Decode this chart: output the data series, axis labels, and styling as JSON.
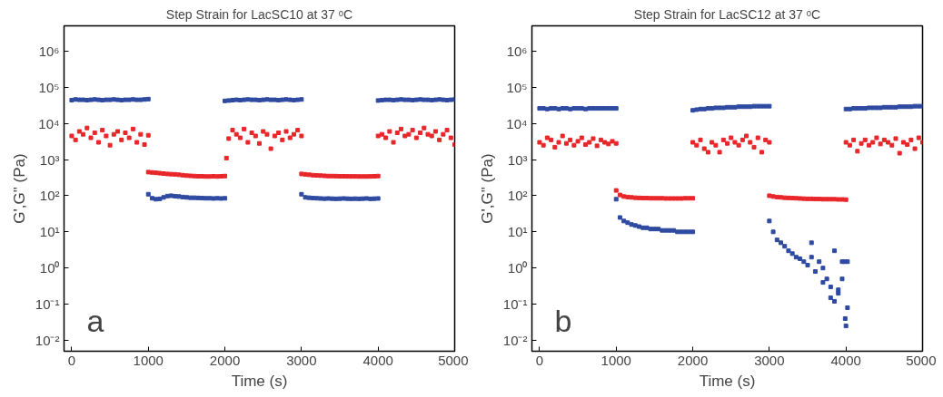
{
  "chart_data": [
    {
      "type": "scatter",
      "title": "Step Strain for LacSC10 at 37 ᵒC",
      "xlabel": "Time (s)",
      "ylabel": "G',G\" (Pa)",
      "log": true,
      "marker": "square",
      "grid": false,
      "xlim": [
        -100,
        5000
      ],
      "xticks": [
        0,
        1000,
        2000,
        3000,
        4000,
        5000
      ],
      "ylim": [
        0.005,
        5000000
      ],
      "yticks": [
        {
          "value": 0.01,
          "label": "10⁻²"
        },
        {
          "value": 0.1,
          "label": "10⁻¹"
        },
        {
          "value": 1,
          "label": "10⁰"
        },
        {
          "value": 10,
          "label": "10¹"
        },
        {
          "value": 100,
          "label": "10²"
        },
        {
          "value": 1000,
          "label": "10³"
        },
        {
          "value": 10000,
          "label": "10⁴"
        },
        {
          "value": 100000,
          "label": "10⁵"
        },
        {
          "value": 1000000,
          "label": "10⁶"
        }
      ],
      "annotations": [
        "a"
      ],
      "series": [
        {
          "color": "#2e4aa0",
          "x": [
            0,
            50,
            100,
            150,
            200,
            250,
            300,
            350,
            400,
            450,
            500,
            550,
            600,
            650,
            700,
            750,
            800,
            850,
            900,
            950,
            1000,
            1000,
            1050,
            1100,
            1150,
            1200,
            1250,
            1300,
            1350,
            1400,
            1450,
            1500,
            1550,
            1600,
            1650,
            1700,
            1750,
            1800,
            1850,
            1900,
            1950,
            2000,
            2000,
            2050,
            2100,
            2150,
            2200,
            2250,
            2300,
            2350,
            2400,
            2450,
            2500,
            2550,
            2600,
            2650,
            2700,
            2750,
            2800,
            2850,
            2900,
            2950,
            3000,
            3000,
            3050,
            3100,
            3150,
            3200,
            3250,
            3300,
            3350,
            3400,
            3450,
            3500,
            3550,
            3600,
            3650,
            3700,
            3750,
            3800,
            3850,
            3900,
            3950,
            4000,
            4000,
            4050,
            4100,
            4150,
            4200,
            4250,
            4300,
            4350,
            4400,
            4450,
            4500,
            4550,
            4600,
            4650,
            4700,
            4750,
            4800,
            4850,
            4900,
            4950,
            5000
          ],
          "values": [
            44000,
            46000,
            45000,
            45000,
            44000,
            45000,
            46000,
            45000,
            44000,
            45000,
            45000,
            46000,
            45000,
            44000,
            45000,
            45000,
            46000,
            45000,
            45000,
            46000,
            47000,
            110,
            85,
            80,
            82,
            90,
            98,
            100,
            97,
            95,
            92,
            90,
            88,
            88,
            87,
            86,
            85,
            85,
            84,
            85,
            84,
            85,
            42000,
            43000,
            44000,
            45000,
            44000,
            45000,
            46000,
            45000,
            45000,
            44000,
            45000,
            46000,
            45000,
            45000,
            44000,
            45000,
            46000,
            45000,
            44000,
            45000,
            46000,
            110,
            90,
            88,
            86,
            85,
            84,
            83,
            84,
            83,
            82,
            83,
            84,
            83,
            82,
            83,
            82,
            83,
            84,
            82,
            83,
            84,
            43000,
            44000,
            45000,
            45000,
            44000,
            45000,
            46000,
            45000,
            45000,
            44000,
            45000,
            46000,
            45000,
            45000,
            44000,
            45000,
            46000,
            45000,
            44000,
            45000,
            46000
          ]
        },
        {
          "color": "#e8262a",
          "x": [
            0,
            50,
            100,
            150,
            200,
            250,
            300,
            350,
            400,
            450,
            500,
            550,
            600,
            650,
            700,
            750,
            800,
            850,
            900,
            950,
            1000,
            1000,
            1050,
            1100,
            1150,
            1200,
            1250,
            1300,
            1350,
            1400,
            1450,
            1500,
            1550,
            1600,
            1650,
            1700,
            1750,
            1800,
            1850,
            1900,
            1950,
            2000,
            2020,
            2050,
            2100,
            2150,
            2200,
            2250,
            2300,
            2350,
            2400,
            2450,
            2500,
            2550,
            2600,
            2650,
            2700,
            2750,
            2800,
            2850,
            2900,
            2950,
            3000,
            3000,
            3050,
            3100,
            3150,
            3200,
            3250,
            3300,
            3350,
            3400,
            3450,
            3500,
            3550,
            3600,
            3650,
            3700,
            3750,
            3800,
            3850,
            3900,
            3950,
            4000,
            4000,
            4050,
            4100,
            4150,
            4200,
            4250,
            4300,
            4350,
            4400,
            4450,
            4500,
            4550,
            4600,
            4650,
            4700,
            4750,
            4800,
            4850,
            4900,
            4950,
            5000
          ],
          "values": [
            4500,
            3500,
            6000,
            5000,
            7500,
            4000,
            5500,
            3000,
            6500,
            4500,
            2500,
            5000,
            6000,
            3500,
            5500,
            4000,
            7000,
            3000,
            5000,
            2600,
            4700,
            450,
            440,
            430,
            420,
            410,
            400,
            395,
            390,
            380,
            370,
            360,
            355,
            350,
            345,
            345,
            340,
            340,
            345,
            340,
            345,
            350,
            1100,
            3800,
            6500,
            5000,
            4000,
            7000,
            3000,
            5500,
            4500,
            2800,
            6000,
            5000,
            2000,
            4500,
            5500,
            3500,
            6000,
            4000,
            5000,
            6500,
            4500,
            400,
            390,
            380,
            370,
            365,
            360,
            355,
            350,
            350,
            348,
            345,
            345,
            343,
            342,
            342,
            340,
            340,
            340,
            342,
            345,
            350,
            4500,
            5000,
            4000,
            6000,
            3000,
            5500,
            7000,
            4500,
            5000,
            6500,
            4000,
            5500,
            7500,
            5000,
            4500,
            6000,
            3500,
            5000,
            6500,
            4000,
            2600
          ]
        }
      ]
    },
    {
      "type": "scatter",
      "title": "Step Strain for LacSC12 at 37 ᵒC",
      "xlabel": "Time (s)",
      "ylabel": "G',G\" (Pa)",
      "log": true,
      "marker": "square",
      "grid": false,
      "xlim": [
        -100,
        5000
      ],
      "xticks": [
        0,
        1000,
        2000,
        3000,
        4000,
        5000
      ],
      "ylim": [
        0.005,
        5000000
      ],
      "yticks": [
        {
          "value": 0.01,
          "label": "10⁻²"
        },
        {
          "value": 0.1,
          "label": "10⁻¹"
        },
        {
          "value": 1,
          "label": "10⁰"
        },
        {
          "value": 10,
          "label": "10¹"
        },
        {
          "value": 100,
          "label": "10²"
        },
        {
          "value": 1000,
          "label": "10³"
        },
        {
          "value": 10000,
          "label": "10⁴"
        },
        {
          "value": 100000,
          "label": "10⁵"
        },
        {
          "value": 1000000,
          "label": "10⁶"
        }
      ],
      "annotations": [
        "b"
      ],
      "series": [
        {
          "color": "#2e4aa0",
          "x": [
            0,
            50,
            100,
            150,
            200,
            250,
            300,
            350,
            400,
            450,
            500,
            550,
            600,
            650,
            700,
            750,
            800,
            850,
            900,
            950,
            1000,
            1000,
            1050,
            1100,
            1150,
            1200,
            1250,
            1300,
            1350,
            1400,
            1450,
            1500,
            1550,
            1600,
            1650,
            1700,
            1750,
            1800,
            1850,
            1900,
            1950,
            2000,
            2000,
            2050,
            2100,
            2150,
            2200,
            2250,
            2300,
            2350,
            2400,
            2450,
            2500,
            2550,
            2600,
            2650,
            2700,
            2750,
            2800,
            2850,
            2900,
            2950,
            3000,
            3000,
            3050,
            3100,
            3150,
            3200,
            3250,
            3300,
            3350,
            3400,
            3450,
            3500,
            3550,
            3600,
            3650,
            3700,
            3750,
            3800,
            3850,
            3900,
            3950,
            4000,
            3550,
            3700,
            3800,
            3850,
            3900,
            3950,
            3980,
            4020,
            4020,
            3990,
            4000,
            4050,
            4100,
            4150,
            4200,
            4250,
            4300,
            4350,
            4400,
            4450,
            4500,
            4550,
            4600,
            4650,
            4700,
            4750,
            4800,
            4850,
            4900,
            4950,
            5000
          ],
          "values": [
            26000,
            26000,
            25000,
            26000,
            26000,
            25000,
            26000,
            26000,
            25000,
            26000,
            26000,
            26000,
            25000,
            26000,
            26000,
            26000,
            26000,
            26000,
            26000,
            26000,
            26000,
            80,
            25,
            20,
            18,
            16,
            15,
            14,
            13,
            13,
            12,
            12,
            12,
            11,
            11,
            11,
            11,
            10,
            10,
            10,
            10,
            10,
            23000,
            24000,
            25000,
            25000,
            26000,
            26000,
            27000,
            27000,
            27000,
            28000,
            28000,
            28000,
            29000,
            29000,
            29000,
            29000,
            30000,
            30000,
            30000,
            30000,
            30000,
            20,
            10,
            6,
            5,
            4,
            3,
            2.5,
            2,
            1.8,
            1.5,
            1.2,
            2,
            0.8,
            1.5,
            1,
            0.5,
            0.3,
            0.12,
            0.2,
            1.5,
            0.025,
            5,
            0.4,
            0.15,
            3,
            0.25,
            0.5,
            1.5,
            0.08,
            1.5,
            0.04,
            25000,
            25000,
            26000,
            26000,
            26000,
            26000,
            27000,
            27000,
            27000,
            27000,
            28000,
            28000,
            28000,
            28000,
            29000,
            29000,
            29000,
            29000,
            30000,
            30000,
            30000
          ]
        },
        {
          "color": "#e8262a",
          "x": [
            0,
            50,
            100,
            150,
            200,
            250,
            300,
            350,
            400,
            450,
            500,
            550,
            600,
            650,
            700,
            750,
            800,
            850,
            900,
            950,
            1000,
            1000,
            1050,
            1100,
            1150,
            1200,
            1250,
            1300,
            1350,
            1400,
            1450,
            1500,
            1550,
            1600,
            1650,
            1700,
            1750,
            1800,
            1850,
            1900,
            1950,
            2000,
            2000,
            2050,
            2100,
            2150,
            2200,
            2250,
            2300,
            2350,
            2400,
            2450,
            2500,
            2550,
            2600,
            2650,
            2700,
            2750,
            2800,
            2850,
            2900,
            2950,
            3000,
            3000,
            3050,
            3100,
            3150,
            3200,
            3250,
            3300,
            3350,
            3400,
            3450,
            3500,
            3550,
            3600,
            3650,
            3700,
            3750,
            3800,
            3850,
            3900,
            3950,
            4000,
            4000,
            4050,
            4100,
            4150,
            4200,
            4250,
            4300,
            4350,
            4400,
            4450,
            4500,
            4550,
            4600,
            4650,
            4700,
            4750,
            4800,
            4850,
            4900,
            4950,
            5000
          ],
          "values": [
            3000,
            2500,
            4000,
            3500,
            2200,
            3000,
            4500,
            2800,
            3500,
            2500,
            3200,
            4000,
            2600,
            3000,
            3800,
            2400,
            3500,
            3000,
            2700,
            3200,
            2800,
            140,
            105,
            95,
            92,
            90,
            88,
            87,
            86,
            86,
            85,
            85,
            85,
            85,
            84,
            84,
            84,
            84,
            84,
            85,
            85,
            85,
            3000,
            2500,
            3500,
            2000,
            1600,
            3000,
            2500,
            1600,
            3500,
            2800,
            4000,
            3000,
            2500,
            3500,
            4500,
            3000,
            2200,
            4000,
            1600,
            3500,
            3000,
            100,
            95,
            92,
            90,
            88,
            87,
            86,
            85,
            84,
            83,
            82,
            82,
            81,
            81,
            80,
            80,
            80,
            80,
            79,
            79,
            78,
            3000,
            2500,
            3500,
            1700,
            2800,
            3500,
            2500,
            3000,
            4000,
            2700,
            3500,
            3000,
            2500,
            3800,
            1500,
            3000,
            2600,
            3500,
            2000,
            4000,
            3000
          ]
        }
      ]
    }
  ]
}
